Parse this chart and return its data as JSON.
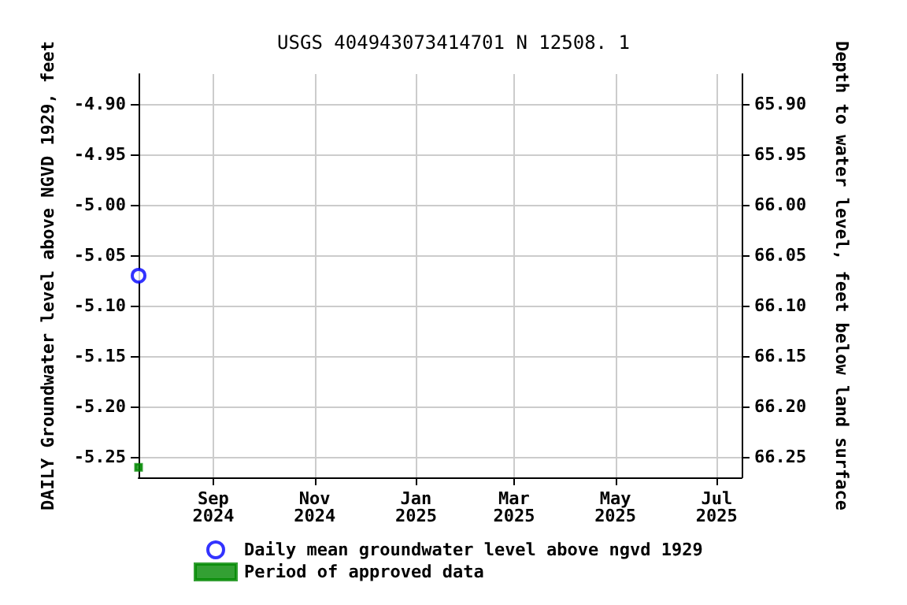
{
  "chart_data": {
    "type": "scatter",
    "title": "USGS 404943073414701 N 12508. 1",
    "xlabel": null,
    "ylabel": "DAILY Groundwater level above NGVD 1929, feet",
    "y2label": "Depth to water level, feet below land surface",
    "x": [
      "2024-07-18"
    ],
    "series": [
      {
        "name": "Daily mean groundwater level above ngvd 1929",
        "color": "#0000ff",
        "marker": "circle",
        "values": [
          -5.07
        ]
      },
      {
        "name": "Period of approved data",
        "color": "#008800",
        "marker": "square",
        "x": [
          "2024-07-18"
        ],
        "values": [
          -5.26
        ]
      }
    ],
    "xlim": [
      "2024-07-18",
      "2025-07-16"
    ],
    "xticks": [
      {
        "value": "2024-09-01",
        "label": "Sep\n2024"
      },
      {
        "value": "2024-11-01",
        "label": "Nov\n2024"
      },
      {
        "value": "2025-01-01",
        "label": "Jan\n2025"
      },
      {
        "value": "2025-03-01",
        "label": "Mar\n2025"
      },
      {
        "value": "2025-05-01",
        "label": "May\n2025"
      },
      {
        "value": "2025-07-01",
        "label": "Jul\n2025"
      }
    ],
    "ylim": [
      -5.27,
      -4.87
    ],
    "yticks": [
      {
        "value": -4.9,
        "label": "-4.90"
      },
      {
        "value": -4.95,
        "label": "-4.95"
      },
      {
        "value": -5.0,
        "label": "-5.00"
      },
      {
        "value": -5.05,
        "label": "-5.05"
      },
      {
        "value": -5.1,
        "label": "-5.10"
      },
      {
        "value": -5.15,
        "label": "-5.15"
      },
      {
        "value": -5.2,
        "label": "-5.20"
      },
      {
        "value": -5.25,
        "label": "-5.25"
      }
    ],
    "y2lim": [
      66.27,
      65.87
    ],
    "y2ticks": [
      {
        "value": 65.9,
        "label": "65.90"
      },
      {
        "value": 65.95,
        "label": "65.95"
      },
      {
        "value": 66.0,
        "label": "66.00"
      },
      {
        "value": 66.05,
        "label": "66.05"
      },
      {
        "value": 66.1,
        "label": "66.10"
      },
      {
        "value": 66.15,
        "label": "66.15"
      },
      {
        "value": 66.2,
        "label": "66.20"
      },
      {
        "value": 66.25,
        "label": "66.25"
      }
    ],
    "grid": true,
    "legend": "bottom"
  }
}
